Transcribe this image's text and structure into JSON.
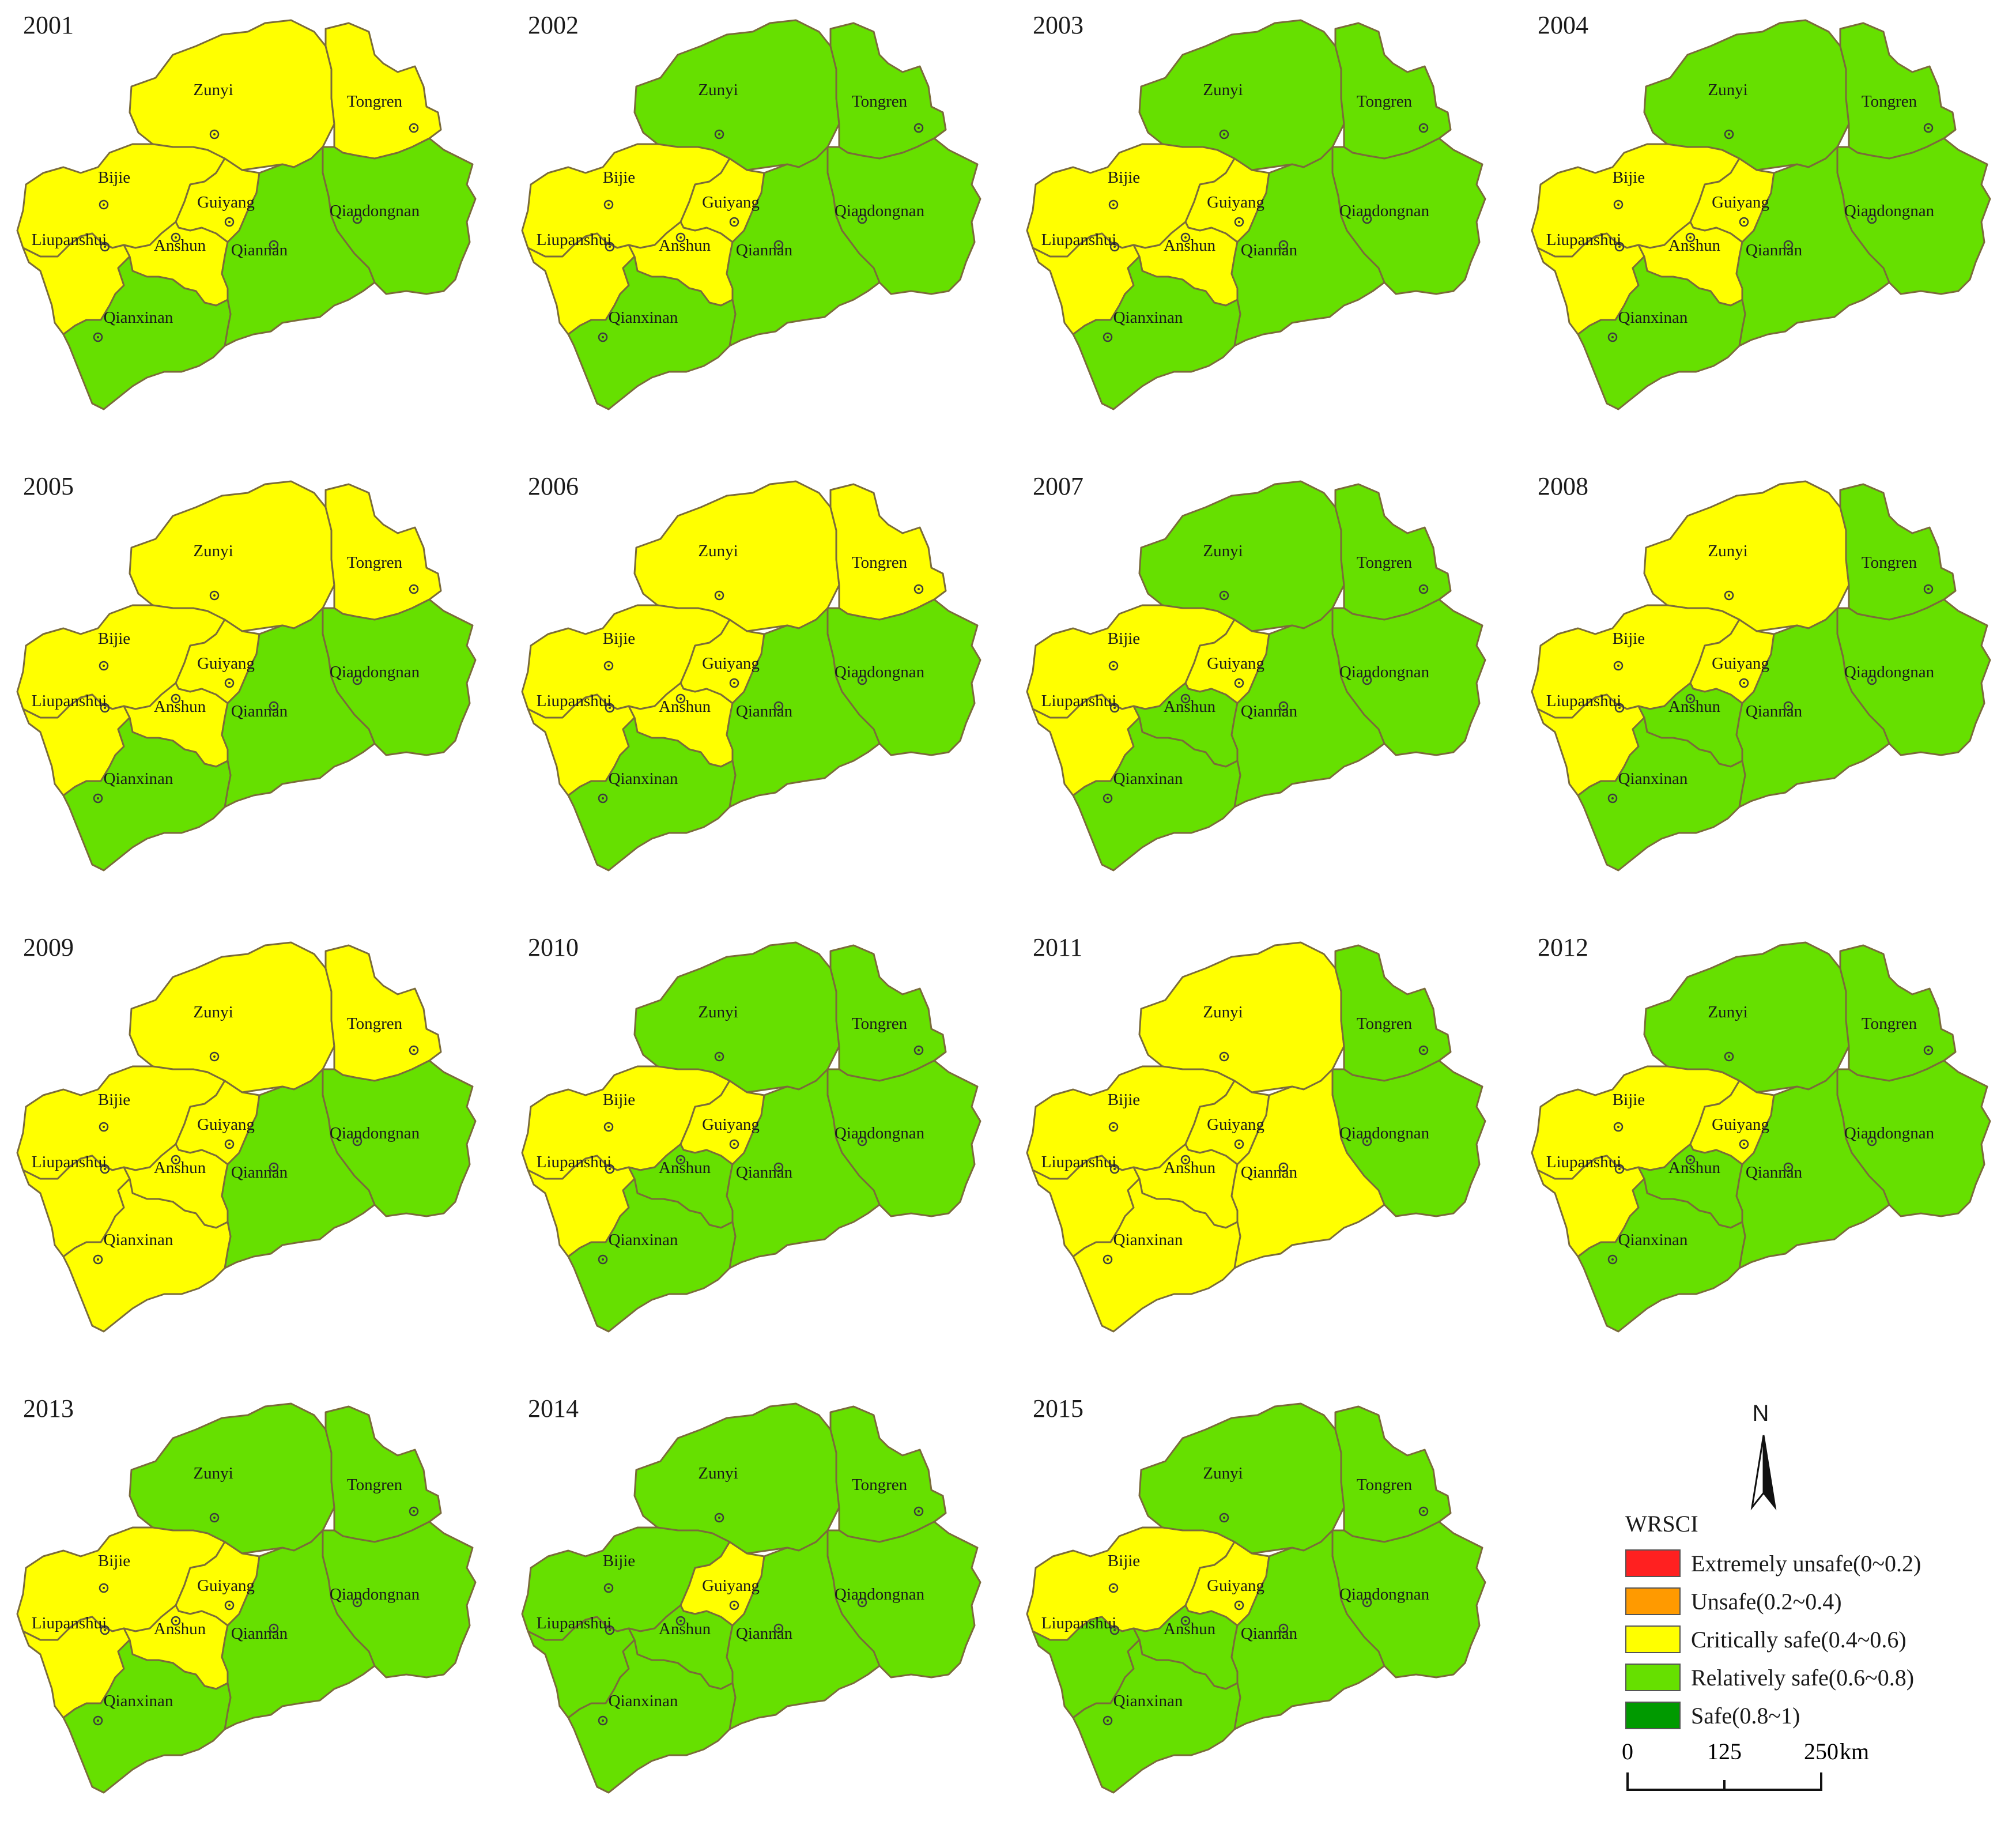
{
  "regions": [
    "Zunyi",
    "Tongren",
    "Bijie",
    "Guiyang",
    "Qiandongnan",
    "Liupanshui",
    "Anshun",
    "Qiannan",
    "Qianxinan"
  ],
  "categories": {
    "C": {
      "label": "Critically safe(0.4~0.6)",
      "color": "#ffff00"
    },
    "R": {
      "label": "Relatively safe(0.6~0.8)",
      "color": "#66e000"
    }
  },
  "maps": [
    {
      "year": "2001",
      "status": {
        "Zunyi": "C",
        "Tongren": "C",
        "Bijie": "C",
        "Guiyang": "C",
        "Qiandongnan": "R",
        "Liupanshui": "C",
        "Anshun": "C",
        "Qiannan": "R",
        "Qianxinan": "R"
      }
    },
    {
      "year": "2002",
      "status": {
        "Zunyi": "R",
        "Tongren": "R",
        "Bijie": "C",
        "Guiyang": "C",
        "Qiandongnan": "R",
        "Liupanshui": "C",
        "Anshun": "C",
        "Qiannan": "R",
        "Qianxinan": "R"
      }
    },
    {
      "year": "2003",
      "status": {
        "Zunyi": "R",
        "Tongren": "R",
        "Bijie": "C",
        "Guiyang": "C",
        "Qiandongnan": "R",
        "Liupanshui": "C",
        "Anshun": "C",
        "Qiannan": "R",
        "Qianxinan": "R"
      }
    },
    {
      "year": "2004",
      "status": {
        "Zunyi": "R",
        "Tongren": "R",
        "Bijie": "C",
        "Guiyang": "C",
        "Qiandongnan": "R",
        "Liupanshui": "C",
        "Anshun": "C",
        "Qiannan": "R",
        "Qianxinan": "R"
      }
    },
    {
      "year": "2005",
      "status": {
        "Zunyi": "C",
        "Tongren": "C",
        "Bijie": "C",
        "Guiyang": "C",
        "Qiandongnan": "R",
        "Liupanshui": "C",
        "Anshun": "C",
        "Qiannan": "R",
        "Qianxinan": "R"
      }
    },
    {
      "year": "2006",
      "status": {
        "Zunyi": "C",
        "Tongren": "C",
        "Bijie": "C",
        "Guiyang": "C",
        "Qiandongnan": "R",
        "Liupanshui": "C",
        "Anshun": "C",
        "Qiannan": "R",
        "Qianxinan": "R"
      }
    },
    {
      "year": "2007",
      "status": {
        "Zunyi": "R",
        "Tongren": "R",
        "Bijie": "C",
        "Guiyang": "C",
        "Qiandongnan": "R",
        "Liupanshui": "C",
        "Anshun": "R",
        "Qiannan": "R",
        "Qianxinan": "R"
      }
    },
    {
      "year": "2008",
      "status": {
        "Zunyi": "C",
        "Tongren": "R",
        "Bijie": "C",
        "Guiyang": "C",
        "Qiandongnan": "R",
        "Liupanshui": "C",
        "Anshun": "R",
        "Qiannan": "R",
        "Qianxinan": "R"
      }
    },
    {
      "year": "2009",
      "status": {
        "Zunyi": "C",
        "Tongren": "C",
        "Bijie": "C",
        "Guiyang": "C",
        "Qiandongnan": "R",
        "Liupanshui": "C",
        "Anshun": "C",
        "Qiannan": "R",
        "Qianxinan": "C"
      }
    },
    {
      "year": "2010",
      "status": {
        "Zunyi": "R",
        "Tongren": "R",
        "Bijie": "C",
        "Guiyang": "C",
        "Qiandongnan": "R",
        "Liupanshui": "C",
        "Anshun": "R",
        "Qiannan": "R",
        "Qianxinan": "R"
      }
    },
    {
      "year": "2011",
      "status": {
        "Zunyi": "C",
        "Tongren": "R",
        "Bijie": "C",
        "Guiyang": "C",
        "Qiandongnan": "R",
        "Liupanshui": "C",
        "Anshun": "C",
        "Qiannan": "C",
        "Qianxinan": "C"
      }
    },
    {
      "year": "2012",
      "status": {
        "Zunyi": "R",
        "Tongren": "R",
        "Bijie": "C",
        "Guiyang": "C",
        "Qiandongnan": "R",
        "Liupanshui": "C",
        "Anshun": "R",
        "Qiannan": "R",
        "Qianxinan": "R"
      }
    },
    {
      "year": "2013",
      "status": {
        "Zunyi": "R",
        "Tongren": "R",
        "Bijie": "C",
        "Guiyang": "C",
        "Qiandongnan": "R",
        "Liupanshui": "C",
        "Anshun": "C",
        "Qiannan": "R",
        "Qianxinan": "R"
      }
    },
    {
      "year": "2014",
      "status": {
        "Zunyi": "R",
        "Tongren": "R",
        "Bijie": "R",
        "Guiyang": "C",
        "Qiandongnan": "R",
        "Liupanshui": "R",
        "Anshun": "R",
        "Qiannan": "R",
        "Qianxinan": "R"
      }
    },
    {
      "year": "2015",
      "status": {
        "Zunyi": "R",
        "Tongren": "R",
        "Bijie": "C",
        "Guiyang": "C",
        "Qiandongnan": "R",
        "Liupanshui": "R",
        "Anshun": "R",
        "Qiannan": "R",
        "Qianxinan": "R"
      }
    }
  ],
  "legend": {
    "north_label": "N",
    "title": "WRSCI",
    "items": [
      {
        "label": "Extremely unsafe(0~0.2)",
        "color": "#ff2020"
      },
      {
        "label": "Unsafe(0.2~0.4)",
        "color": "#ff9a00"
      },
      {
        "label": "Critically safe(0.4~0.6)",
        "color": "#ffff00"
      },
      {
        "label": "Relatively safe(0.6~0.8)",
        "color": "#66e000"
      },
      {
        "label": "Safe(0.8~1)",
        "color": "#009a00"
      }
    ],
    "scale": {
      "ticks": [
        "0",
        "125",
        "250"
      ],
      "unit": "km"
    }
  }
}
